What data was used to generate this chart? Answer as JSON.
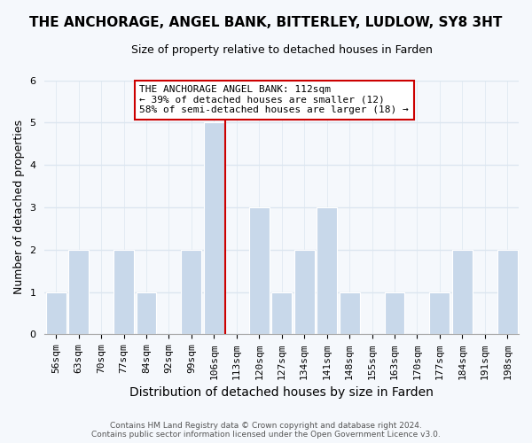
{
  "title": "THE ANCHORAGE, ANGEL BANK, BITTERLEY, LUDLOW, SY8 3HT",
  "subtitle": "Size of property relative to detached houses in Farden",
  "xlabel": "Distribution of detached houses by size in Farden",
  "ylabel": "Number of detached properties",
  "categories": [
    "56sqm",
    "63sqm",
    "70sqm",
    "77sqm",
    "84sqm",
    "92sqm",
    "99sqm",
    "106sqm",
    "113sqm",
    "120sqm",
    "127sqm",
    "134sqm",
    "141sqm",
    "148sqm",
    "155sqm",
    "163sqm",
    "170sqm",
    "177sqm",
    "184sqm",
    "191sqm",
    "198sqm"
  ],
  "values": [
    1,
    2,
    0,
    2,
    1,
    0,
    2,
    5,
    0,
    3,
    1,
    2,
    3,
    1,
    0,
    1,
    0,
    1,
    2,
    0,
    2
  ],
  "bar_color": "#c8d8ea",
  "bar_edge_color": "#ffffff",
  "reference_line_index": 7,
  "annotation_title": "THE ANCHORAGE ANGEL BANK: 112sqm",
  "annotation_line1": "← 39% of detached houses are smaller (12)",
  "annotation_line2": "58% of semi-detached houses are larger (18) →",
  "annotation_box_facecolor": "#ffffff",
  "annotation_box_edgecolor": "#cc0000",
  "ref_line_color": "#cc0000",
  "ylim": [
    0,
    6
  ],
  "yticks": [
    0,
    1,
    2,
    3,
    4,
    5,
    6
  ],
  "footer_line1": "Contains HM Land Registry data © Crown copyright and database right 2024.",
  "footer_line2": "Contains public sector information licensed under the Open Government Licence v3.0.",
  "fig_facecolor": "#f5f8fc",
  "plot_facecolor": "#f5f8fc",
  "grid_color": "#dce6f0",
  "title_fontsize": 11,
  "subtitle_fontsize": 9,
  "ylabel_fontsize": 9,
  "xlabel_fontsize": 10,
  "tick_fontsize": 8,
  "annotation_fontsize": 8,
  "footer_fontsize": 6.5
}
